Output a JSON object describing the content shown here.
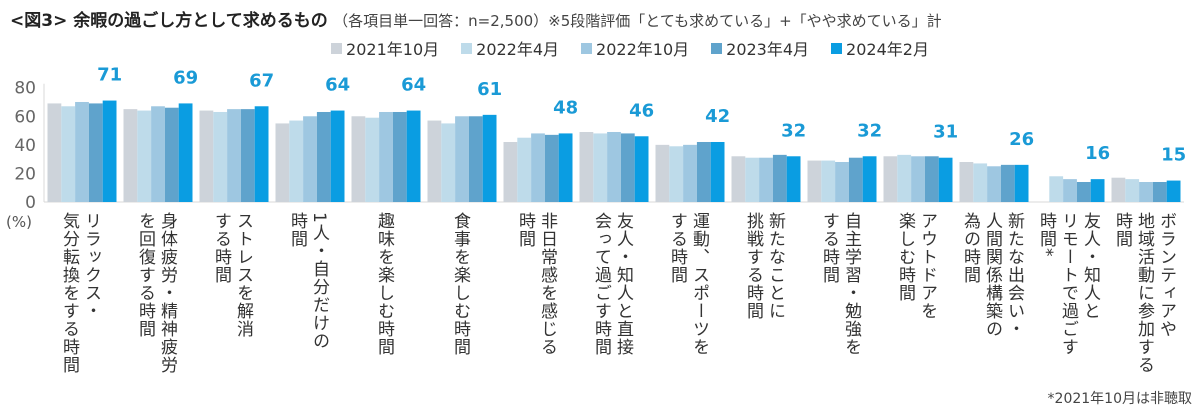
{
  "title": {
    "main": "<図3> 余暇の過ごし方として求めるもの",
    "sub": "（各項目単一回答：n=2,500）※5段階評価「とても求めている」+「やや求めている」計"
  },
  "footnote": "*2021年10月は非聴取",
  "chart_data": {
    "type": "bar",
    "title": "<図3> 余暇の過ごし方として求めるもの",
    "ylabel": "(%)",
    "ylim": [
      0,
      80
    ],
    "yticks": [
      0,
      20,
      40,
      60,
      80
    ],
    "grid": false,
    "legend_position": "top",
    "categories": [
      "リラックス・\n気分転換をする時間",
      "身体疲労・精神疲労\nを回復する時間",
      "ストレスを解消\nする時間",
      "1人・自分だけの\n時間",
      "趣味を楽しむ時間",
      "食事を楽しむ時間",
      "非日常感を感じる\n時間",
      "友人・知人と直接\n会って過ごす時間",
      "運動、スポーツを\nする時間",
      "新たなことに\n挑戦する時間",
      "自主学習・勉強を\nする時間",
      "アウトドアを\n楽しむ時間",
      "新たな出会い・\n人間関係構築の\n為の時間",
      "友人・知人と\nリモートで過ごす\n時間*",
      "ボランティアや\n地域活動に参加する\n時間"
    ],
    "series": [
      {
        "name": "2021年10月",
        "color": "#cdd3da",
        "values": [
          69,
          65,
          64,
          55,
          60,
          57,
          42,
          49,
          40,
          32,
          29,
          32,
          28,
          null,
          17
        ]
      },
      {
        "name": "2022年4月",
        "color": "#bedbea",
        "values": [
          67,
          64,
          63,
          57,
          59,
          55,
          45,
          48,
          39,
          31,
          29,
          33,
          27,
          18,
          16
        ]
      },
      {
        "name": "2022年10月",
        "color": "#9ec7e1",
        "values": [
          70,
          67,
          65,
          60,
          63,
          60,
          48,
          49,
          40,
          31,
          28,
          32,
          25,
          16,
          14
        ]
      },
      {
        "name": "2023年4月",
        "color": "#5fa3cc",
        "values": [
          69,
          66,
          65,
          63,
          63,
          60,
          47,
          48,
          42,
          33,
          31,
          32,
          26,
          14,
          14
        ]
      },
      {
        "name": "2024年2月",
        "color": "#0a9de2",
        "values": [
          71,
          69,
          67,
          64,
          64,
          61,
          48,
          46,
          42,
          32,
          32,
          31,
          26,
          16,
          15
        ],
        "labeled": true
      }
    ],
    "data_label_color": "#1a9ad6"
  }
}
